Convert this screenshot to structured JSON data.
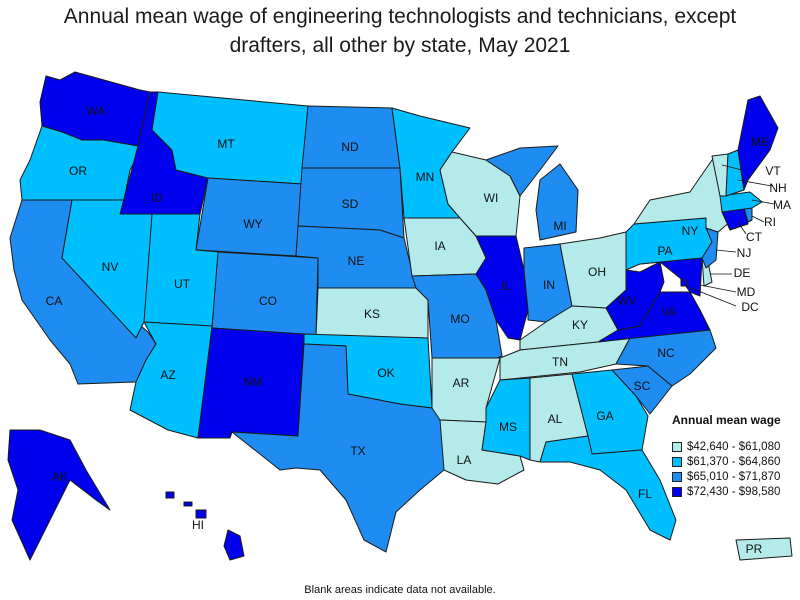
{
  "title_line1": "Annual mean wage of engineering technologists and technicians, except",
  "title_line2": "drafters, all other by state, May 2021",
  "colors": {
    "q1": "#b4eaea",
    "q2": "#00bfff",
    "q3": "#1e8cf0",
    "q4": "#0000ee"
  },
  "legend": {
    "title": "Annual mean wage",
    "items": [
      {
        "range": "$42,640 - $61,080",
        "class": "q1"
      },
      {
        "range": "$61,370 - $64,860",
        "class": "q2"
      },
      {
        "range": "$65,010 - $71,870",
        "class": "q3"
      },
      {
        "range": "$72,430 - $98,580",
        "class": "q4"
      }
    ]
  },
  "states": {
    "WA": "q4",
    "OR": "q2",
    "CA": "q3",
    "NV": "q2",
    "ID": "q4",
    "MT": "q2",
    "WY": "q3",
    "UT": "q2",
    "AZ": "q2",
    "CO": "q3",
    "NM": "q4",
    "ND": "q3",
    "SD": "q3",
    "NE": "q3",
    "KS": "q1",
    "OK": "q2",
    "TX": "q3",
    "MN": "q2",
    "IA": "q1",
    "MO": "q3",
    "AR": "q1",
    "LA": "q1",
    "WI": "q1",
    "IL": "q4",
    "MI": "q3",
    "IN": "q3",
    "OH": "q1",
    "KY": "q1",
    "TN": "q1",
    "MS": "q2",
    "AL": "q1",
    "GA": "q2",
    "FL": "q2",
    "SC": "q3",
    "NC": "q3",
    "VA": "q4",
    "WV": "q4",
    "MD": "q4",
    "DE": "q1",
    "DC": "q4",
    "PA": "q2",
    "NJ": "q3",
    "NY": "q1",
    "CT": "q4",
    "RI": "q3",
    "MA": "q2",
    "VT": "q1",
    "NH": "q2",
    "ME": "q4",
    "AK": "q4",
    "HI": "q4",
    "PR": "q1"
  },
  "footnote": "Blank areas indicate data not available."
}
